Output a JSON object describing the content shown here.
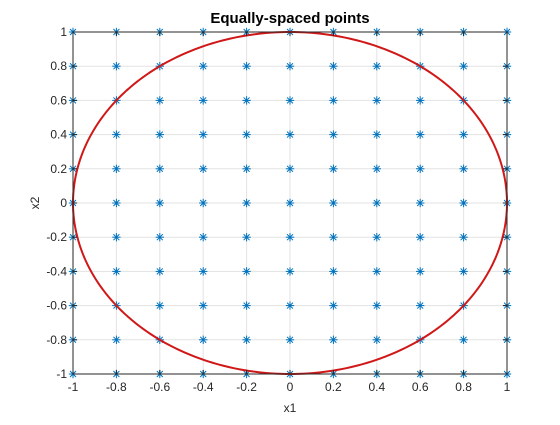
{
  "chart_data": {
    "type": "scatter",
    "title": "Equally-spaced points",
    "xlabel": "x1",
    "ylabel": "x2",
    "xlim": [
      -1,
      1
    ],
    "ylim": [
      -1,
      1
    ],
    "grid": true,
    "xticks": [
      "-1",
      "-0.8",
      "-0.6",
      "-0.4",
      "-0.2",
      "0",
      "0.2",
      "0.4",
      "0.6",
      "0.8",
      "1"
    ],
    "yticks": [
      "-1",
      "-0.8",
      "-0.6",
      "-0.4",
      "-0.2",
      "0",
      "0.2",
      "0.4",
      "0.6",
      "0.8",
      "1"
    ],
    "series": [
      {
        "type": "scatter",
        "marker": "asterisk",
        "color": "#0072BD",
        "grid_x": [
          -1,
          -0.8,
          -0.6,
          -0.4,
          -0.2,
          0,
          0.2,
          0.4,
          0.6,
          0.8,
          1
        ],
        "grid_y": [
          -1,
          -0.8,
          -0.6,
          -0.4,
          -0.2,
          0,
          0.2,
          0.4,
          0.6,
          0.8,
          1
        ]
      },
      {
        "type": "line",
        "shape": "circle",
        "color": "#D01818",
        "center": [
          0,
          0
        ],
        "radius": 1
      }
    ]
  }
}
